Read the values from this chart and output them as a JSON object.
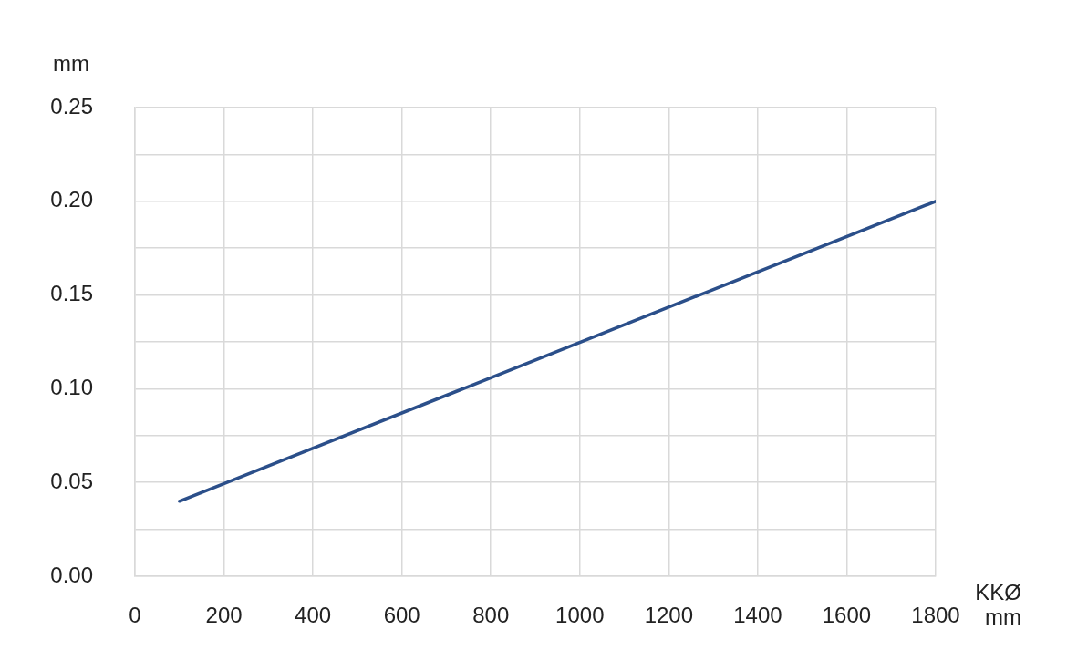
{
  "chart_data": {
    "type": "line",
    "xlabel": "KKØ mm",
    "ylabel": "mm",
    "series": [
      {
        "color": "#2b4f8a",
        "x": [
          100,
          1800
        ],
        "values": [
          0.04,
          0.2
        ]
      }
    ],
    "xlim": [
      0,
      1800
    ],
    "xticks": [
      0,
      200,
      400,
      600,
      800,
      1000,
      1200,
      1400,
      1600,
      1800
    ],
    "ylim": [
      0,
      0.25
    ],
    "yticks": [
      {
        "value": 0,
        "label": "0.00"
      },
      {
        "value": 0.025,
        "label": null
      },
      {
        "value": 0.05,
        "label": "0.05"
      },
      {
        "value": 0.075,
        "label": null
      },
      {
        "value": 0.1,
        "label": "0.10"
      },
      {
        "value": 0.125,
        "label": null
      },
      {
        "value": 0.15,
        "label": "0.15"
      },
      {
        "value": 0.175,
        "label": null
      },
      {
        "value": 0.2,
        "label": "0.20"
      },
      {
        "value": 0.225,
        "label": null
      },
      {
        "value": 0.25,
        "label": "0.25"
      }
    ],
    "grid": true,
    "legend": false,
    "marker": "none",
    "line_style": "solid"
  }
}
